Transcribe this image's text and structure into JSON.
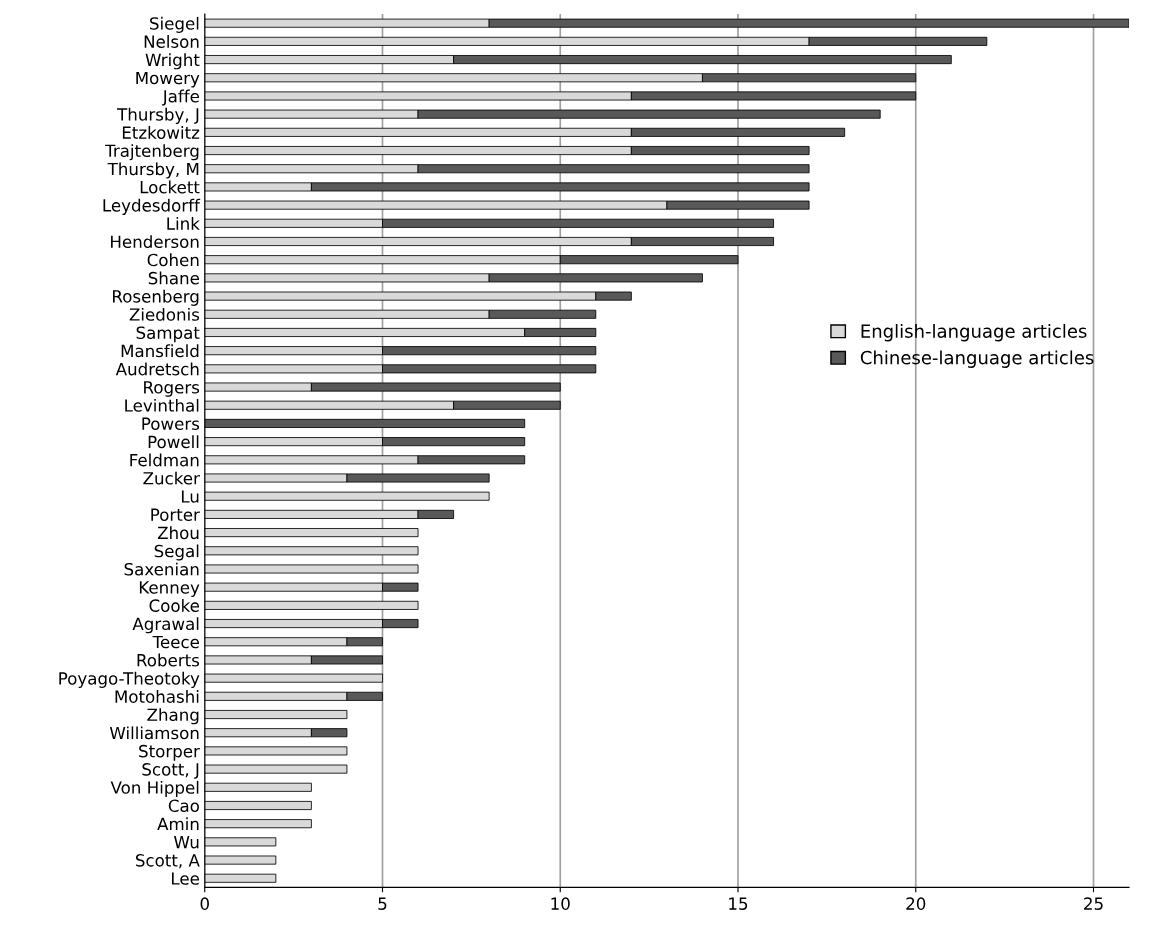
{
  "chart_data": {
    "type": "bar",
    "orientation": "horizontal",
    "stacked": true,
    "categories": [
      "Siegel",
      "Nelson",
      "Wright",
      "Mowery",
      "Jaffe",
      "Thursby, J",
      "Etzkowitz",
      "Trajtenberg",
      "Thursby, M",
      "Lockett",
      "Leydesdorff",
      "Link",
      "Henderson",
      "Cohen",
      "Shane",
      "Rosenberg",
      "Ziedonis",
      "Sampat",
      "Mansfield",
      "Audretsch",
      "Rogers",
      "Levinthal",
      "Powers",
      "Powell",
      "Feldman",
      "Zucker",
      "Lu",
      "Porter",
      "Zhou",
      "Segal",
      "Saxenian",
      "Kenney",
      "Cooke",
      "Agrawal",
      "Teece",
      "Roberts",
      "Poyago-Theotoky",
      "Motohashi",
      "Zhang",
      "Williamson",
      "Storper",
      "Scott, J",
      "Von Hippel",
      "Cao",
      "Amin",
      "Wu",
      "Scott, A",
      "Lee"
    ],
    "series": [
      {
        "name": "English-language articles",
        "color": "#d9d9d9",
        "values": [
          8,
          17,
          7,
          14,
          12,
          6,
          12,
          12,
          6,
          3,
          13,
          5,
          12,
          10,
          8,
          11,
          8,
          9,
          5,
          5,
          3,
          7,
          null,
          5,
          6,
          4,
          8,
          6,
          6,
          6,
          6,
          5,
          6,
          5,
          4,
          3,
          5,
          4,
          4,
          3,
          4,
          4,
          3,
          3,
          3,
          2,
          2,
          2
        ]
      },
      {
        "name": "Chinese-language articles",
        "color": "#595959",
        "values": [
          18,
          5,
          14,
          6,
          8,
          13,
          6,
          5,
          11,
          14,
          4,
          11,
          4,
          5,
          6,
          1,
          3,
          2,
          6,
          6,
          7,
          3,
          9,
          4,
          3,
          4,
          null,
          1,
          null,
          null,
          null,
          1,
          null,
          1,
          1,
          2,
          null,
          1,
          null,
          1,
          null,
          null,
          null,
          null,
          null,
          null,
          null,
          null
        ]
      }
    ],
    "xlim": [
      0,
      26
    ],
    "xticks": [
      0,
      5,
      10,
      15,
      20,
      25
    ],
    "grid": "x",
    "legend": "right"
  }
}
